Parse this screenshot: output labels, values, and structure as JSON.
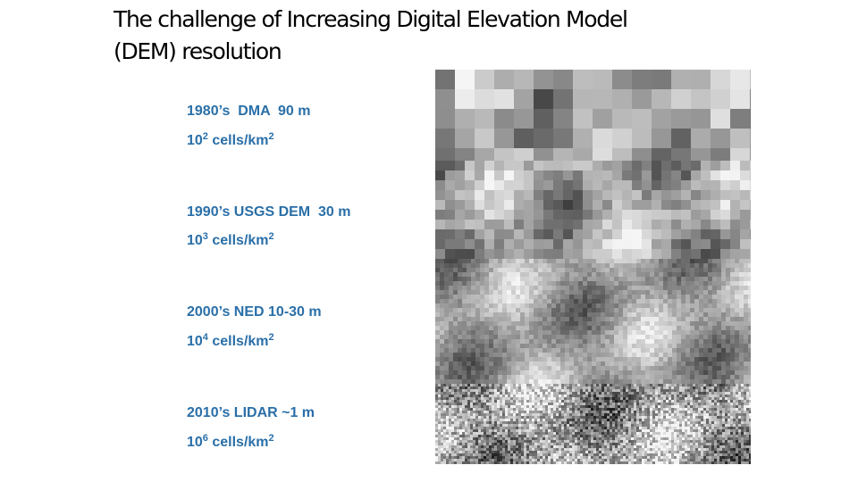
{
  "title_lines": [
    "The challenge of Increasing Digital Elevation Model",
    "(DEM) resolution"
  ],
  "eras": [
    {
      "label": "1980’s  DMA  90 m",
      "density": {
        "base": "10",
        "exp": "2",
        "unit": " cells/km",
        "unit_exp": "2"
      }
    },
    {
      "label": "1990’s USGS DEM  30 m",
      "density": {
        "base": "10",
        "exp": "3",
        "unit": " cells/km",
        "unit_exp": "2"
      }
    },
    {
      "label": "2000’s NED 10-30 m",
      "density": {
        "base": "10",
        "exp": "4",
        "unit": " cells/km",
        "unit_exp": "2"
      }
    },
    {
      "label": "2010’s LIDAR ~1 m",
      "density": {
        "base": "10",
        "exp": "6",
        "unit": " cells/km",
        "unit_exp": "2"
      }
    }
  ]
}
